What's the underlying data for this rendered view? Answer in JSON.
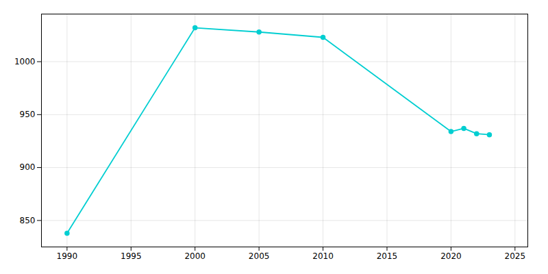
{
  "chart_data": {
    "type": "line",
    "x": [
      1990,
      2000,
      2005,
      2010,
      2020,
      2021,
      2022,
      2023
    ],
    "values": [
      838,
      1032,
      1028,
      1023,
      934,
      937,
      932,
      931
    ],
    "color": "#00CED1",
    "marker": "circle",
    "xlim": [
      1988,
      2026
    ],
    "ylim": [
      825,
      1045
    ],
    "xticks": [
      1990,
      1995,
      2000,
      2005,
      2010,
      2015,
      2020,
      2025
    ],
    "yticks": [
      850,
      900,
      950,
      1000
    ],
    "grid": true
  }
}
